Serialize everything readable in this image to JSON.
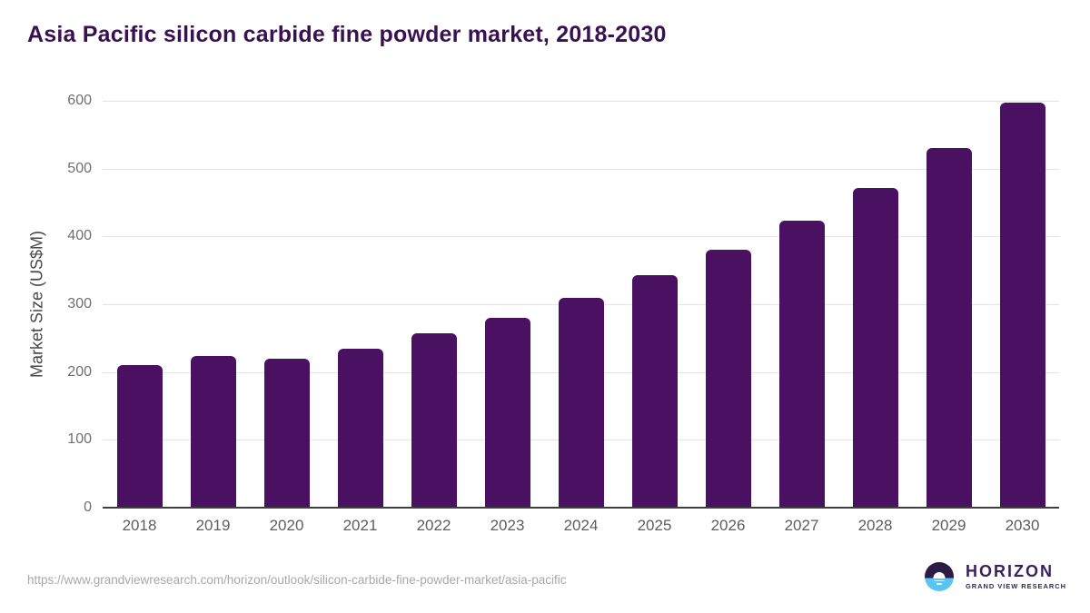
{
  "chart_data": {
    "type": "bar",
    "title": "Asia Pacific silicon carbide fine powder market, 2018-2030",
    "categories": [
      "2018",
      "2019",
      "2020",
      "2021",
      "2022",
      "2023",
      "2024",
      "2025",
      "2026",
      "2027",
      "2028",
      "2029",
      "2030"
    ],
    "values": [
      210,
      224,
      220,
      235,
      257,
      280,
      310,
      343,
      380,
      423,
      472,
      530,
      598
    ],
    "xlabel": "",
    "ylabel": "Market Size (US$M)",
    "ylim": [
      0,
      600
    ],
    "yticks": [
      0,
      100,
      200,
      300,
      400,
      500,
      600
    ],
    "grid": true,
    "legend": false,
    "bar_color": "#4a1061"
  },
  "footer": {
    "source_url": "https://www.grandviewresearch.com/horizon/outlook/silicon-carbide-fine-powder-market/asia-pacific",
    "logo": {
      "brand": "HORIZON",
      "tagline": "GRAND VIEW RESEARCH"
    }
  },
  "colors": {
    "bar": "#4a1061",
    "title_text": "#3a1150",
    "axis_line": "#3f3f3f",
    "gridline": "#e4e4e4",
    "tick_label": "#6f6f6f",
    "x_label": "#5d5d5d",
    "url_text": "#a8a8a8",
    "logo_navy": "#2d1a45",
    "logo_blue": "#58c4f0",
    "logo_text": "#3b2060"
  }
}
